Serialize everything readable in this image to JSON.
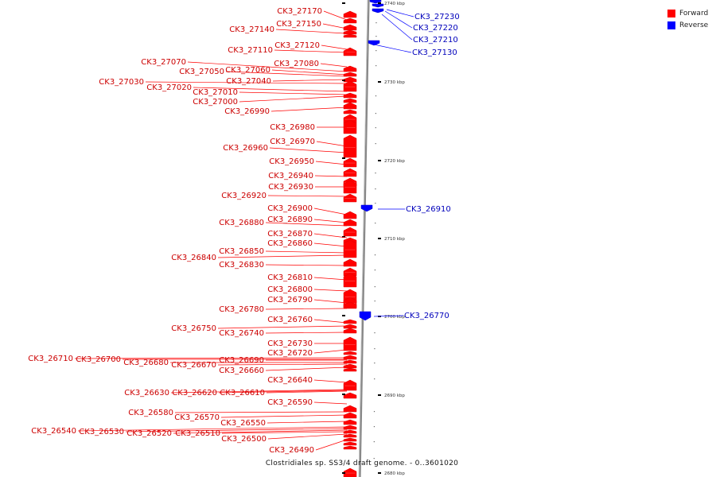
{
  "caption": "Clostridiales sp. SS3/4 draft genome. - 0..3601020",
  "legend": [
    {
      "label": "Forward",
      "color": "#ff0000"
    },
    {
      "label": "Reverse",
      "color": "#0000ff"
    }
  ],
  "colors": {
    "forward": "#ff0000",
    "reverse": "#0000ff",
    "forward_text": "#cc0000",
    "reverse_text": "#0000bb",
    "backbone": "#888888"
  },
  "scale_ticks": [
    "2740 kbp",
    "2730 kbp",
    "2720 kbp",
    "2710 kbp",
    "2700 kbp",
    "2690 kbp",
    "2680 kbp"
  ],
  "forward_genes": [
    "CK3_27170",
    "CK3_27150",
    "CK3_27140",
    "CK3_27120",
    "CK3_27110",
    "CK3_27080",
    "CK3_27070",
    "CK3_27060",
    "CK3_27050",
    "CK3_27040",
    "CK3_27030",
    "CK3_27020",
    "CK3_27010",
    "CK3_27000",
    "CK3_26990",
    "CK3_26980",
    "CK3_26970",
    "CK3_26960",
    "CK3_26950",
    "CK3_26940",
    "CK3_26930",
    "CK3_26920",
    "CK3_26900",
    "CK3_26890",
    "CK3_26880",
    "CK3_26870",
    "CK3_26860",
    "CK3_26850",
    "CK3_26840",
    "CK3_26830",
    "CK3_26810",
    "CK3_26800",
    "CK3_26790",
    "CK3_26780",
    "CK3_26760",
    "CK3_26750",
    "CK3_26740",
    "CK3_26730",
    "CK3_26720",
    "CK3_26710",
    "CK3_26700",
    "CK3_26690",
    "CK3_26680",
    "CK3_26670",
    "CK3_26660",
    "CK3_26640",
    "CK3_26630",
    "CK3_26620",
    "CK3_26610",
    "CK3_26590",
    "CK3_26580",
    "CK3_26570",
    "CK3_26550",
    "CK3_26540",
    "CK3_26530",
    "CK3_26520",
    "CK3_26510",
    "CK3_26500",
    "CK3_26490"
  ],
  "reverse_genes": [
    "CK3_27230",
    "CK3_27220",
    "CK3_27210",
    "CK3_27130",
    "CK3_26910",
    "CK3_26770"
  ]
}
